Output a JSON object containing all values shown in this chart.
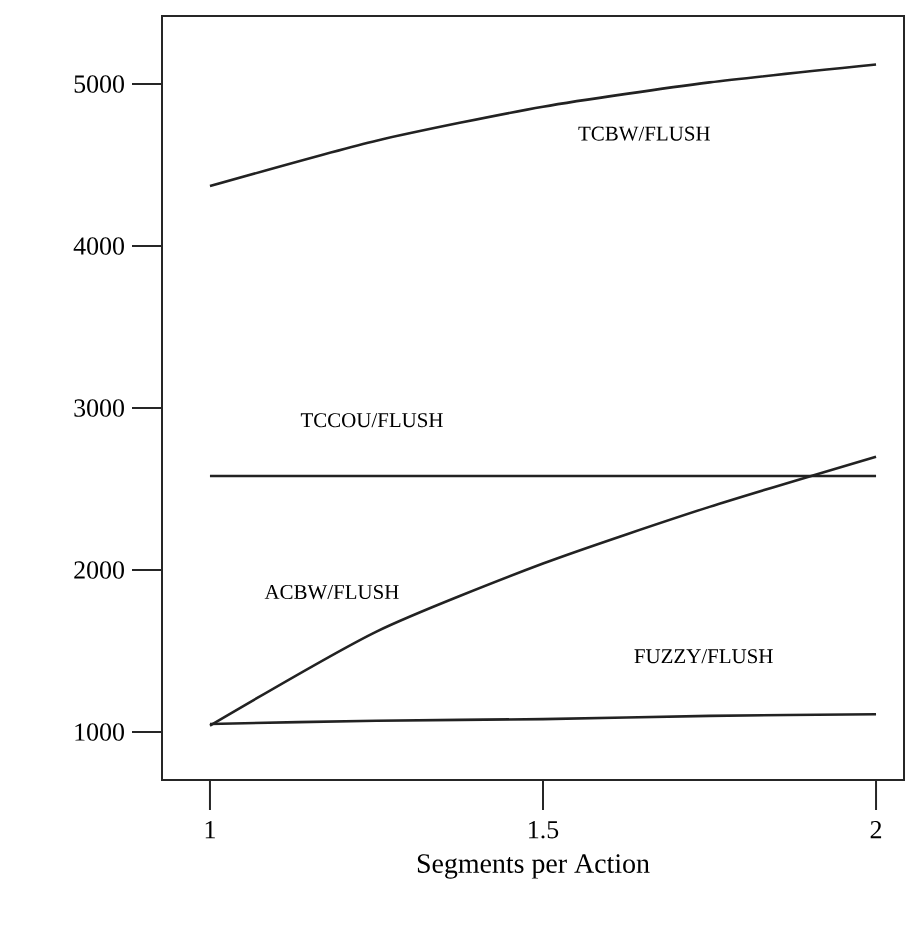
{
  "chart_data": {
    "type": "line",
    "xlabel": "Segments per Action",
    "xlim": [
      0.928,
      2.042
    ],
    "ylim": [
      704,
      5420
    ],
    "xticks": [
      1,
      1.5,
      2
    ],
    "yticks": [
      1000,
      2000,
      3000,
      4000,
      5000
    ],
    "x": [
      1,
      1.25,
      1.5,
      1.75,
      2
    ],
    "grid": false,
    "legend": false,
    "marker": "none",
    "line_style": "solid",
    "series": [
      {
        "name": "TCBW/FLUSH",
        "color": "#222222",
        "values": [
          4370,
          4650,
          4860,
          5010,
          5120
        ]
      },
      {
        "name": "TCCOU/FLUSH",
        "color": "#222222",
        "values": [
          2580,
          2580,
          2580,
          2580,
          2580
        ]
      },
      {
        "name": "ACBW/FLUSH",
        "color": "#222222",
        "values": [
          1040,
          1620,
          2040,
          2390,
          2700
        ]
      },
      {
        "name": "FUZZY/FLUSH",
        "color": "#222222",
        "values": [
          1050,
          1070,
          1080,
          1100,
          1110
        ]
      }
    ]
  }
}
